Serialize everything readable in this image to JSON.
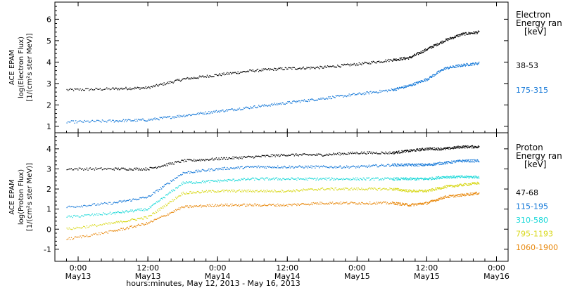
{
  "colors": {
    "black": "#000000",
    "blue": "#1478d8",
    "cyan": "#18d8d8",
    "yellow": "#d8d818",
    "orange": "#e8880c"
  },
  "chart_data": [
    {
      "type": "scatter",
      "ylabel_lines": [
        "ACE EPAM",
        "log(Electron Flux)",
        "[1/(cm²s ster MeV)]"
      ],
      "ylim": [
        0.7,
        6.8
      ],
      "yticks": [
        1,
        2,
        3,
        4,
        5,
        6
      ],
      "legend_title": [
        "Electron",
        "Energy ran",
        "[keV]"
      ],
      "x": [
        "May12 22:00",
        "May13 06:00",
        "May13 12:00",
        "May13 18:00",
        "May14 00:00",
        "May14 06:00",
        "May14 12:00",
        "May14 18:00",
        "May15 00:00",
        "May15 06:00",
        "May15 09:00",
        "May15 12:00",
        "May15 15:00",
        "May15 18:00",
        "May15 21:00"
      ],
      "series": [
        {
          "name": "38-53",
          "color": "#000000",
          "values": [
            2.7,
            2.75,
            2.8,
            3.2,
            3.4,
            3.6,
            3.7,
            3.75,
            3.9,
            4.1,
            4.2,
            4.6,
            5.0,
            5.3,
            5.4
          ]
        },
        {
          "name": "175-315",
          "color": "#1478d8",
          "values": [
            1.2,
            1.25,
            1.3,
            1.5,
            1.7,
            1.9,
            2.1,
            2.3,
            2.5,
            2.7,
            2.9,
            3.2,
            3.7,
            3.85,
            3.95
          ]
        }
      ]
    },
    {
      "type": "scatter",
      "ylabel_lines": [
        "ACE EPAM",
        "log(Proton Flux)",
        "[1/(cm²s ster MeV)]"
      ],
      "ylim": [
        -1.6,
        4.8
      ],
      "yticks": [
        -1,
        0,
        1,
        2,
        3,
        4
      ],
      "legend_title": [
        "Proton",
        "Energy ran",
        "[keV]"
      ],
      "x": [
        "May12 22:00",
        "May13 06:00",
        "May13 12:00",
        "May13 18:00",
        "May14 00:00",
        "May14 06:00",
        "May14 12:00",
        "May14 18:00",
        "May15 00:00",
        "May15 06:00",
        "May15 09:00",
        "May15 12:00",
        "May15 15:00",
        "May15 18:00",
        "May15 21:00"
      ],
      "series": [
        {
          "name": "47-68",
          "color": "#000000",
          "values": [
            3.0,
            3.0,
            3.0,
            3.4,
            3.5,
            3.6,
            3.7,
            3.7,
            3.8,
            3.8,
            3.9,
            4.0,
            4.0,
            4.1,
            4.1
          ]
        },
        {
          "name": "115-195",
          "color": "#1478d8",
          "values": [
            1.1,
            1.3,
            1.6,
            2.8,
            3.0,
            3.1,
            3.1,
            3.1,
            3.1,
            3.2,
            3.2,
            3.2,
            3.3,
            3.4,
            3.4
          ]
        },
        {
          "name": "310-580",
          "color": "#18d8d8",
          "values": [
            0.6,
            0.8,
            1.0,
            2.3,
            2.4,
            2.5,
            2.5,
            2.5,
            2.5,
            2.5,
            2.5,
            2.5,
            2.6,
            2.6,
            2.6
          ]
        },
        {
          "name": "795-1193",
          "color": "#d8d818",
          "values": [
            0.0,
            0.3,
            0.6,
            1.8,
            1.9,
            1.9,
            1.9,
            2.0,
            2.0,
            2.0,
            1.9,
            1.9,
            2.1,
            2.2,
            2.3
          ]
        },
        {
          "name": "1060-1900",
          "color": "#e8880c",
          "values": [
            -0.5,
            -0.1,
            0.3,
            1.1,
            1.2,
            1.2,
            1.2,
            1.3,
            1.3,
            1.3,
            1.2,
            1.3,
            1.6,
            1.7,
            1.8
          ]
        }
      ]
    }
  ],
  "x_axis": {
    "tick_labels": [
      {
        "time": "0:00",
        "date": "May13"
      },
      {
        "time": "12:00",
        "date": "May13"
      },
      {
        "time": "0:00",
        "date": "May14"
      },
      {
        "time": "12:00",
        "date": "May14"
      },
      {
        "time": "0:00",
        "date": "May15"
      },
      {
        "time": "12:00",
        "date": "May15"
      },
      {
        "time": "0:00",
        "date": "May16"
      }
    ],
    "xlabel": "hours:minutes, May 12, 2013 - May 16, 2013"
  }
}
